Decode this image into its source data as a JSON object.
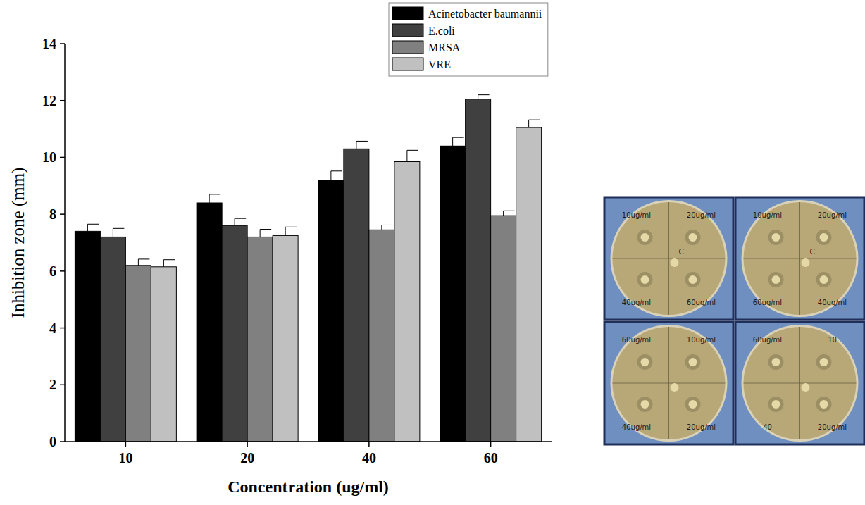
{
  "chart_data": {
    "type": "bar",
    "x_label": "Concentration (ug/ml)",
    "y_label": "Inhibition zone (mm)",
    "categories": [
      "10",
      "20",
      "40",
      "60"
    ],
    "series": [
      {
        "name": "Acinetobacter baumannii",
        "color": "#000000",
        "values": [
          7.4,
          8.4,
          9.2,
          10.4
        ],
        "errors": [
          0.25,
          0.3,
          0.32,
          0.3
        ]
      },
      {
        "name": "E.coli",
        "color": "#404040",
        "values": [
          7.2,
          7.6,
          10.3,
          12.05
        ],
        "errors": [
          0.3,
          0.25,
          0.27,
          0.15
        ]
      },
      {
        "name": "MRSA",
        "color": "#808080",
        "values": [
          6.2,
          7.2,
          7.45,
          7.95
        ],
        "errors": [
          0.22,
          0.27,
          0.17,
          0.17
        ]
      },
      {
        "name": "VRE",
        "color": "#c0c0c0",
        "values": [
          6.15,
          7.25,
          9.85,
          11.05
        ],
        "errors": [
          0.25,
          0.3,
          0.4,
          0.27
        ]
      }
    ],
    "ylim": [
      0,
      14
    ],
    "yticks": [
      0,
      2,
      4,
      6,
      8,
      10,
      12,
      14
    ],
    "grid": false,
    "legend": "top-right"
  },
  "image_panel": {
    "plates": [
      {
        "control": "C",
        "labels": [
          "10ug/ml",
          "20ug/ml",
          "40ug/ml",
          "60ug/ml"
        ]
      },
      {
        "control": "C",
        "labels": [
          "10ug/ml",
          "20ug/ml",
          "60ug/ml",
          "40ug/ml"
        ]
      },
      {
        "control": "",
        "labels": [
          "60ug/ml",
          "10ug/ml",
          "40ug/ml",
          "20ug/ml"
        ]
      },
      {
        "control": "",
        "labels": [
          "60ug/ml",
          "10",
          "40",
          "20ug/ml"
        ]
      }
    ]
  }
}
